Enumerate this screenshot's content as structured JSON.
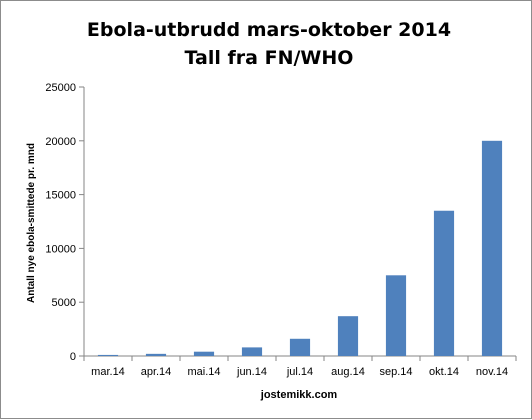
{
  "chart_data": {
    "type": "bar",
    "title_lines": [
      "Ebola-utbrudd mars-oktober 2014",
      "Tall fra FN/WHO"
    ],
    "categories": [
      "mar.14",
      "apr.14",
      "mai.14",
      "jun.14",
      "jul.14",
      "aug.14",
      "sep.14",
      "okt.14",
      "nov.14"
    ],
    "values": [
      100,
      200,
      400,
      800,
      1600,
      3700,
      7500,
      13500,
      20000
    ],
    "xlabel": "jostemikk.com",
    "ylabel": "Antall nye ebola-smittede pr. mnd",
    "ylim": [
      0,
      25000
    ],
    "yticks": [
      "0",
      "5000",
      "10000",
      "15000",
      "20000",
      "25000"
    ],
    "grid": false,
    "legend": "none",
    "bar_color": "#4f81bd"
  }
}
